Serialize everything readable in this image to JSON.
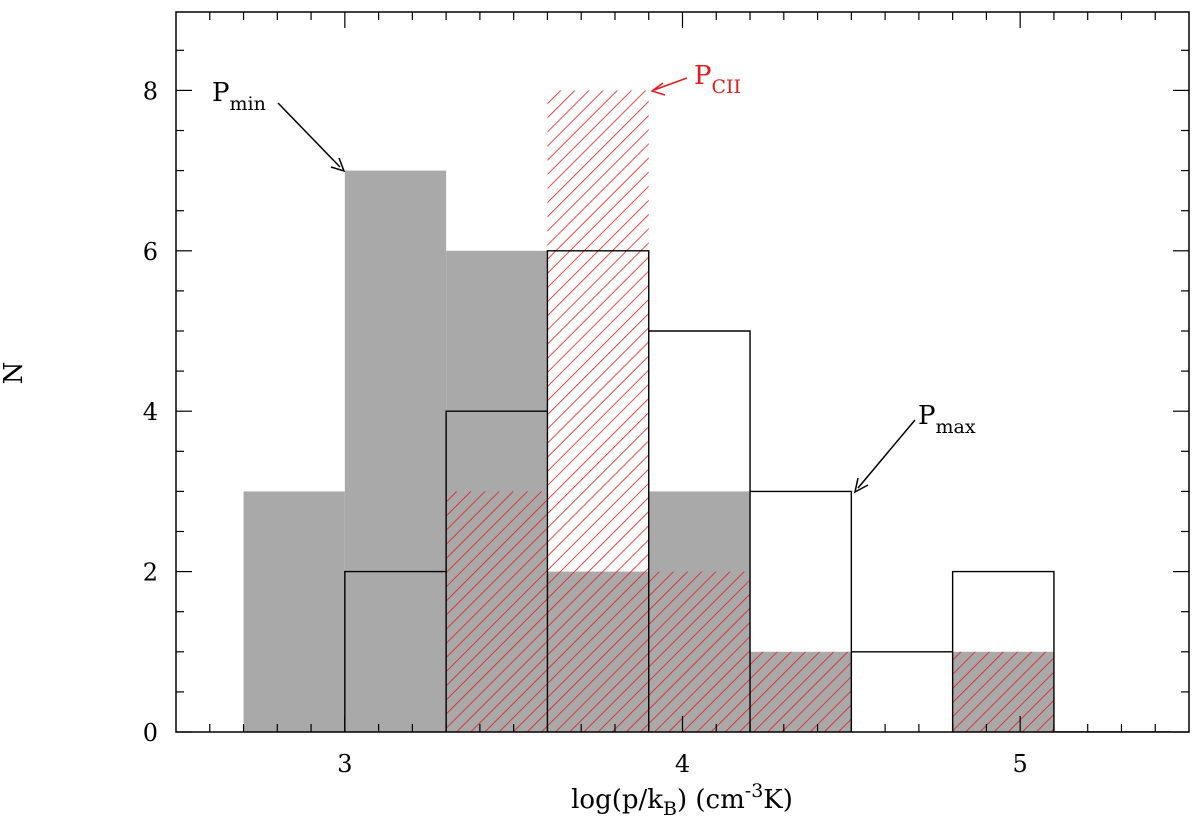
{
  "chart_data": {
    "type": "histogram",
    "xlabel": "log(p/k_B) (cm^-3 K)",
    "xlabel_parts": {
      "main": "log(p/k",
      "sub": "B",
      "mid": ") (cm",
      "sup": "-3",
      "end": "K)"
    },
    "ylabel": "N",
    "xlim": [
      2.5,
      5.5
    ],
    "ylim": [
      0,
      9
    ],
    "xticks": [
      3,
      4,
      5
    ],
    "xtick_labels": [
      "3",
      "4",
      "5"
    ],
    "yticks": [
      0,
      2,
      4,
      6,
      8
    ],
    "ytick_labels": [
      "0",
      "2",
      "4",
      "6",
      "8"
    ],
    "bin_width": 0.3,
    "series": [
      {
        "name": "P_min",
        "style": "filled",
        "color": "#a9a9a9",
        "bins": [
          {
            "x0": 2.7,
            "x1": 3.0,
            "count": 3
          },
          {
            "x0": 3.0,
            "x1": 3.3,
            "count": 7
          },
          {
            "x0": 3.3,
            "x1": 3.6,
            "count": 6
          },
          {
            "x0": 3.6,
            "x1": 3.9,
            "count": 2
          },
          {
            "x0": 3.9,
            "x1": 4.2,
            "count": 3
          },
          {
            "x0": 4.2,
            "x1": 4.5,
            "count": 1
          },
          {
            "x0": 4.5,
            "x1": 4.8,
            "count": 0
          },
          {
            "x0": 4.8,
            "x1": 5.1,
            "count": 1
          }
        ]
      },
      {
        "name": "P_CII",
        "style": "hatched",
        "color": "#e41a1c",
        "bins": [
          {
            "x0": 3.3,
            "x1": 3.6,
            "count": 3
          },
          {
            "x0": 3.6,
            "x1": 3.9,
            "count": 8
          },
          {
            "x0": 3.9,
            "x1": 4.2,
            "count": 2
          },
          {
            "x0": 4.2,
            "x1": 4.5,
            "count": 1
          },
          {
            "x0": 4.5,
            "x1": 4.8,
            "count": 0
          },
          {
            "x0": 4.8,
            "x1": 5.1,
            "count": 1
          }
        ]
      },
      {
        "name": "P_max",
        "style": "outline",
        "color": "#000000",
        "bins": [
          {
            "x0": 3.0,
            "x1": 3.3,
            "count": 2
          },
          {
            "x0": 3.3,
            "x1": 3.6,
            "count": 4
          },
          {
            "x0": 3.6,
            "x1": 3.9,
            "count": 6
          },
          {
            "x0": 3.9,
            "x1": 4.2,
            "count": 5
          },
          {
            "x0": 4.2,
            "x1": 4.5,
            "count": 3
          },
          {
            "x0": 4.5,
            "x1": 4.8,
            "count": 1
          },
          {
            "x0": 4.8,
            "x1": 5.1,
            "count": 2
          }
        ]
      }
    ],
    "annotations": [
      {
        "name": "P_min",
        "label": "P",
        "sub": "min",
        "color": "#000000",
        "points_to": {
          "x": 3.0,
          "y": 7
        }
      },
      {
        "name": "P_CII",
        "label": "P",
        "sub": "CII",
        "color": "#e41a1c",
        "points_to": {
          "x": 3.9,
          "y": 8
        }
      },
      {
        "name": "P_max",
        "label": "P",
        "sub": "max",
        "color": "#000000",
        "points_to": {
          "x": 4.5,
          "y": 3
        }
      }
    ]
  }
}
